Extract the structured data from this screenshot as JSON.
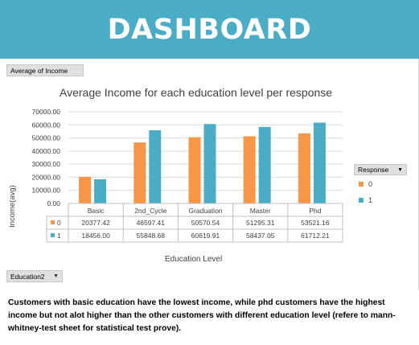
{
  "banner": {
    "title": "DASHBOARD"
  },
  "pivot": {
    "measure_button": "Average of Income",
    "row_field_button": "Education2",
    "legend_field_button": "Response"
  },
  "colors": {
    "series_0": "#f79646",
    "series_1": "#4bacc6",
    "banner": "#4bacc6"
  },
  "chart_data": {
    "type": "bar",
    "title": "Average Income for each education level per response",
    "xlabel": "Education Level",
    "ylabel": "Income(avg)",
    "ylim": [
      0,
      70000
    ],
    "y_ticks": [
      "0.00",
      "10000.00",
      "20000.00",
      "30000.00",
      "40000.00",
      "50000.00",
      "60000.00",
      "70000.00"
    ],
    "grid": true,
    "legend": "right",
    "categories": [
      "Basic",
      "2nd_Cycle",
      "Graduation",
      "Master",
      "Phd"
    ],
    "series": [
      {
        "name": "0",
        "values": [
          20377.42,
          46597.41,
          50570.54,
          51295.31,
          53521.16
        ],
        "labels": [
          "20377.42",
          "46597.41",
          "50570.54",
          "51295.31",
          "53521.16"
        ]
      },
      {
        "name": "1",
        "values": [
          18456.0,
          55848.68,
          60619.91,
          58437.05,
          61712.21
        ],
        "labels": [
          "18456.00",
          "55848.68",
          "60619.91",
          "58437.05",
          "61712.21"
        ]
      }
    ]
  },
  "commentary": "Customers with basic education have the lowest income, while phd customers have the highest income but not alot higher than the other customers with different education level (refere to mann-whitney-test sheet for statistical test prove)."
}
